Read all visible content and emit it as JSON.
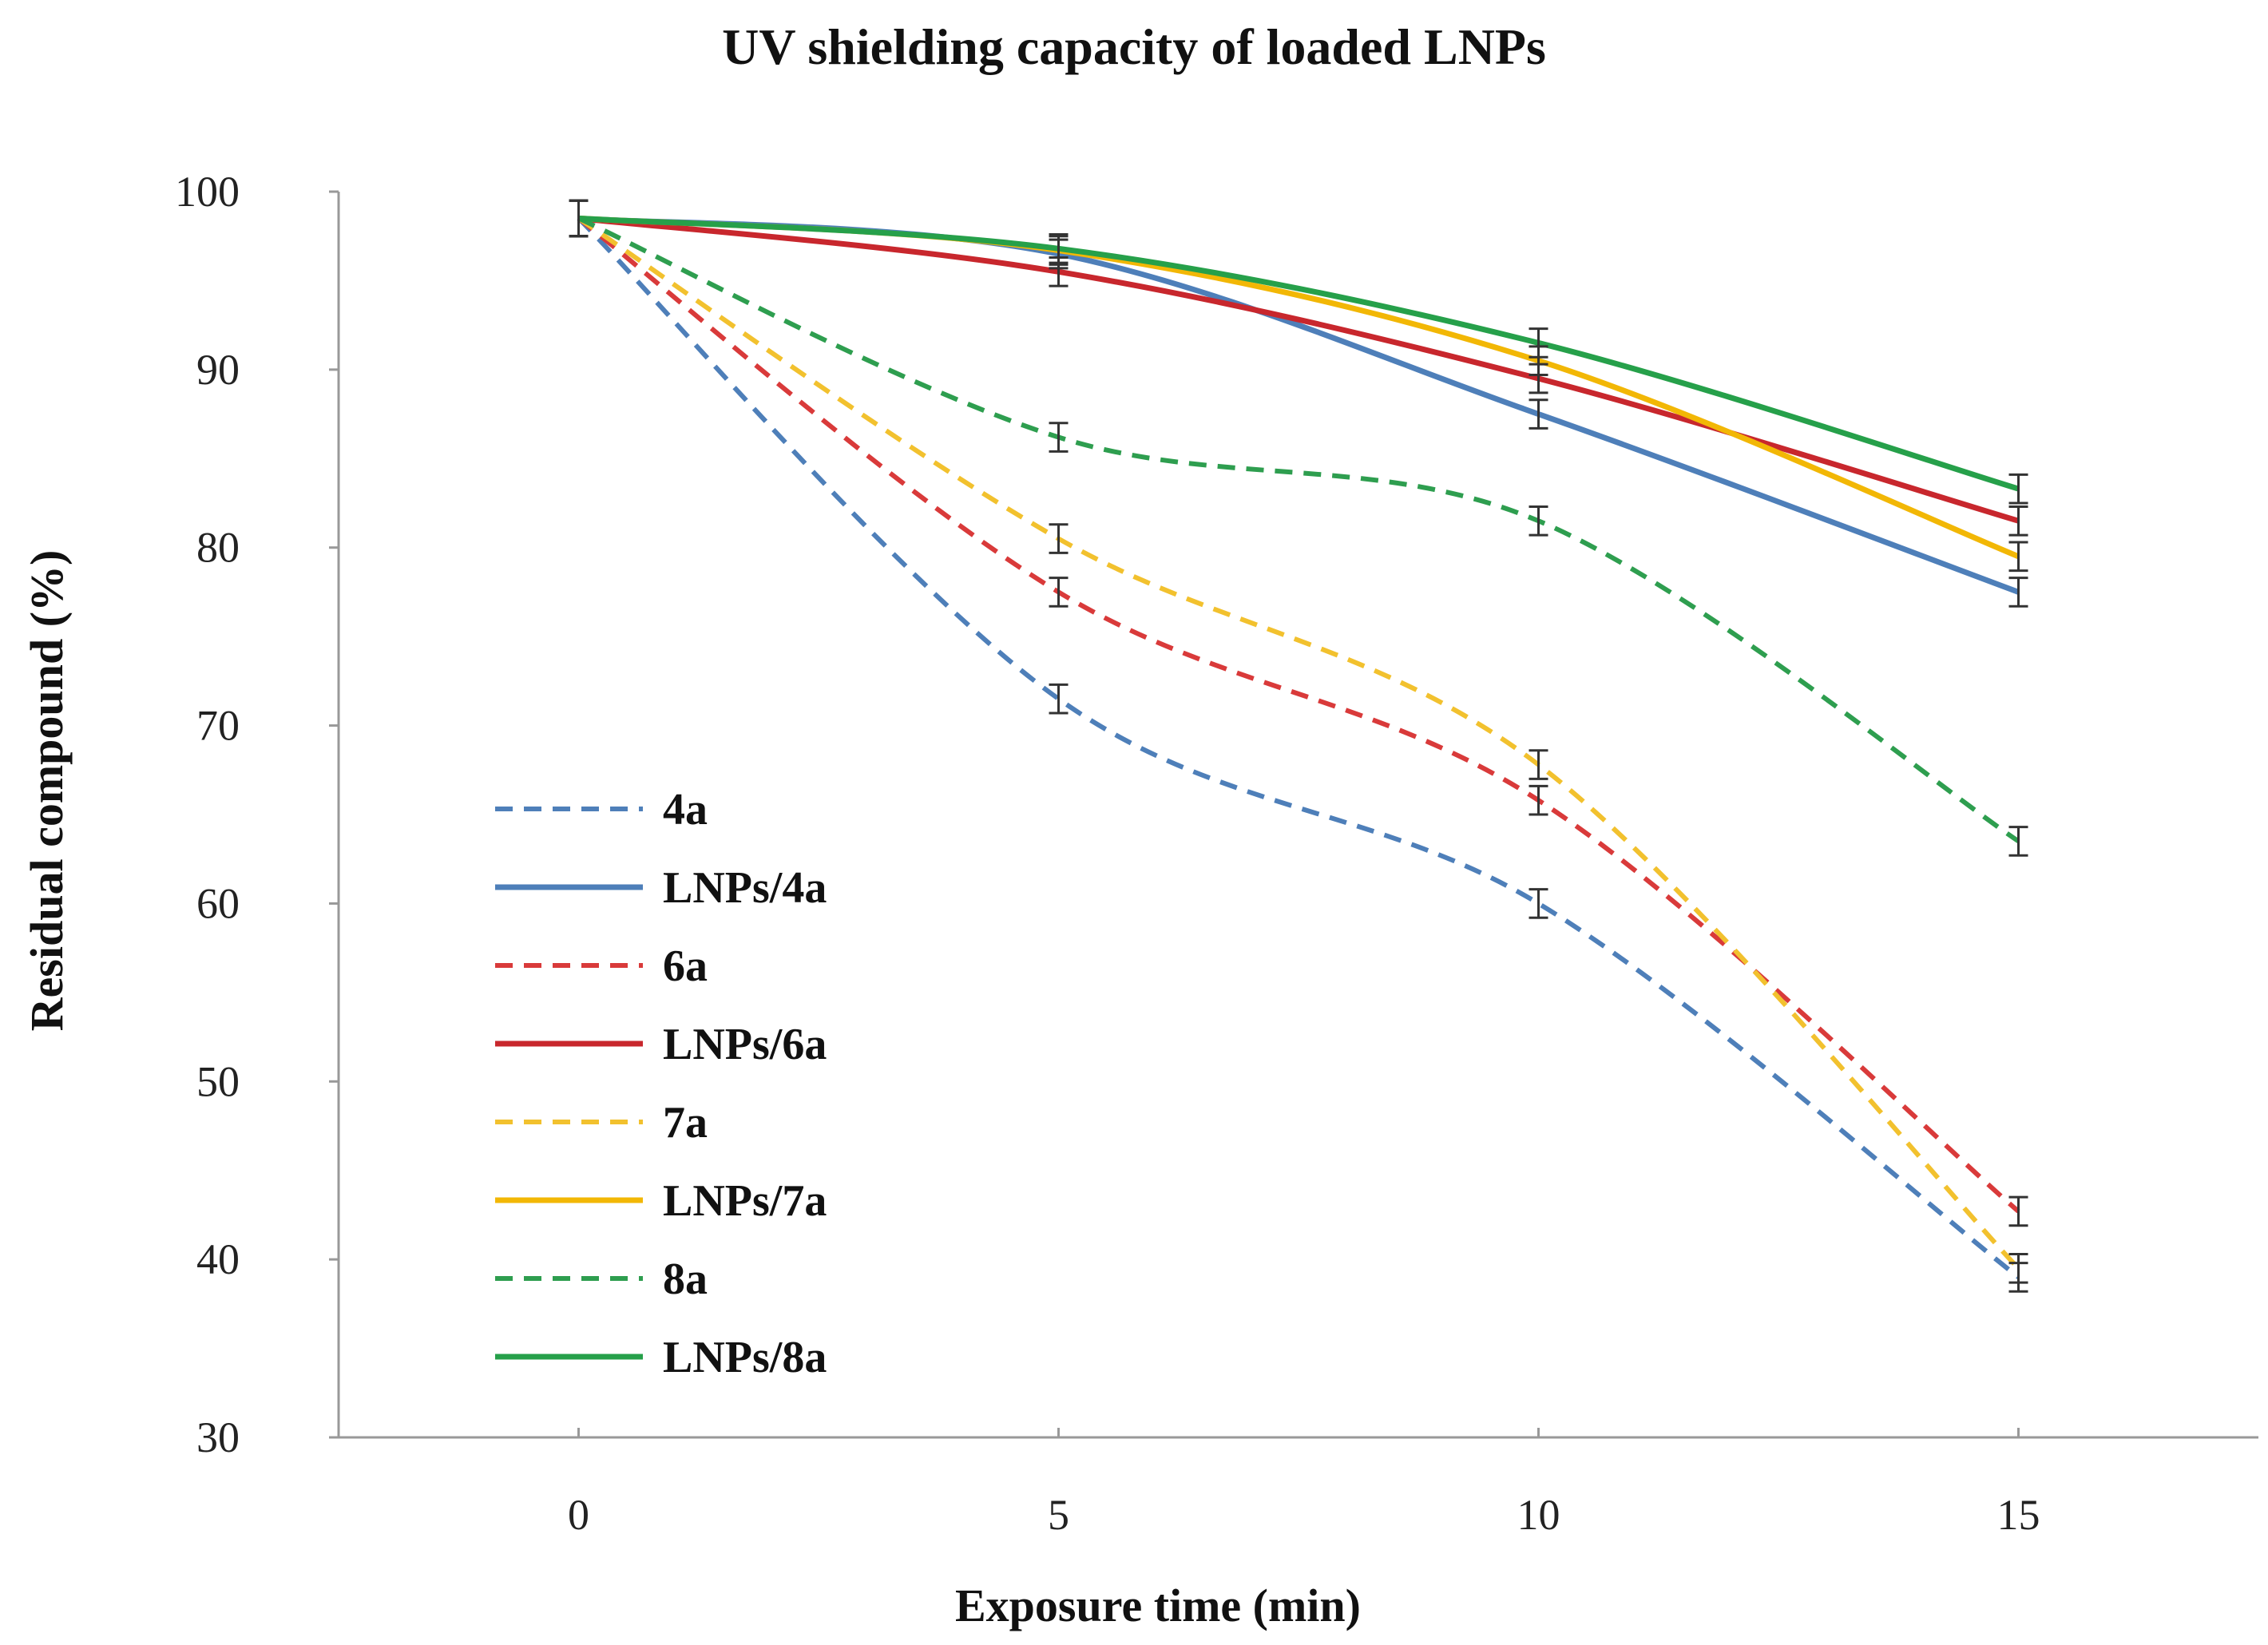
{
  "chart_data": {
    "type": "line",
    "title": "UV shielding capacity of loaded LNPs",
    "xlabel": "Exposure time (min)",
    "ylabel": "Residual compound  (%)",
    "x": [
      0,
      5,
      10,
      15
    ],
    "x_ticks": [
      "0",
      "5",
      "10",
      "15"
    ],
    "xlim": [
      -2.5,
      17.5
    ],
    "y_ticks": [
      "30",
      "40",
      "50",
      "60",
      "70",
      "80",
      "90",
      "100"
    ],
    "ylim": [
      30,
      100
    ],
    "grid": false,
    "legend_position": "left-center",
    "series": [
      {
        "name": "4a",
        "color": "#4E7FB9",
        "dashed": true,
        "values": [
          98.5,
          71.5,
          60.0,
          39.0
        ],
        "errors": [
          1.0,
          0.8,
          0.8,
          0.8
        ]
      },
      {
        "name": "LNPs/4a",
        "color": "#4E7FB9",
        "dashed": false,
        "values": [
          98.5,
          96.5,
          87.5,
          77.5
        ],
        "errors": [
          1.0,
          0.8,
          0.8,
          0.8
        ]
      },
      {
        "name": "6a",
        "color": "#D93A3A",
        "dashed": true,
        "values": [
          98.5,
          77.5,
          65.8,
          42.7
        ],
        "errors": [
          1.0,
          0.8,
          0.8,
          0.8
        ]
      },
      {
        "name": "LNPs/6a",
        "color": "#C8272D",
        "dashed": false,
        "values": [
          98.5,
          95.5,
          89.5,
          81.5
        ],
        "errors": [
          1.0,
          0.8,
          0.8,
          0.8
        ]
      },
      {
        "name": "7a",
        "color": "#F2C12E",
        "dashed": true,
        "values": [
          98.5,
          80.5,
          67.8,
          39.5
        ],
        "errors": [
          1.0,
          0.8,
          0.8,
          0.8
        ]
      },
      {
        "name": "LNPs/7a",
        "color": "#F2B705",
        "dashed": false,
        "values": [
          98.5,
          96.7,
          90.5,
          79.5
        ],
        "errors": [
          1.0,
          0.8,
          0.8,
          0.8
        ]
      },
      {
        "name": "8a",
        "color": "#2E9E4F",
        "dashed": true,
        "values": [
          98.5,
          86.2,
          81.5,
          63.5
        ],
        "errors": [
          1.0,
          0.8,
          0.8,
          0.8
        ]
      },
      {
        "name": "LNPs/8a",
        "color": "#26A04A",
        "dashed": false,
        "values": [
          98.5,
          96.8,
          91.5,
          83.3
        ],
        "errors": [
          1.0,
          0.8,
          0.8,
          0.8
        ]
      }
    ]
  }
}
